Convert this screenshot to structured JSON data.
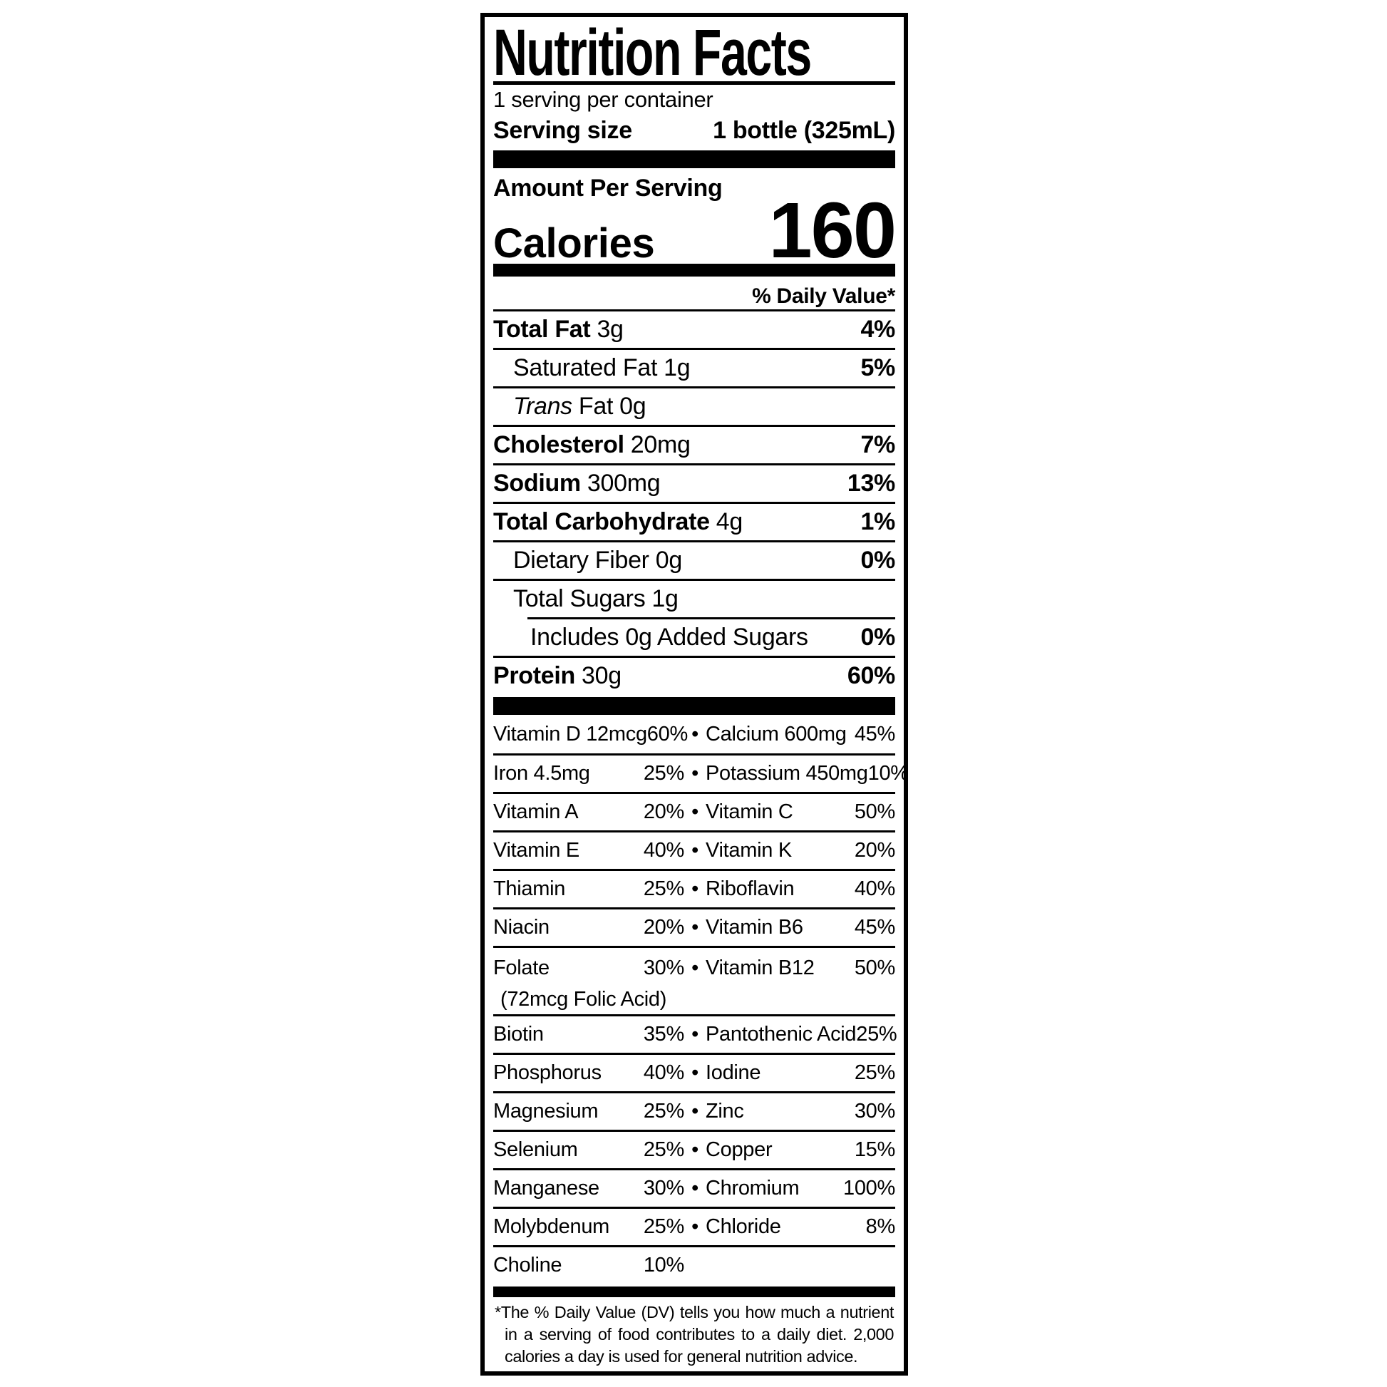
{
  "label": {
    "title": "Nutrition Facts",
    "servings_per_container": "1 serving per container",
    "serving_size_label": "Serving size",
    "serving_size_value": "1 bottle (325mL)",
    "amount_per_serving": "Amount Per Serving",
    "calories_label": "Calories",
    "calories_value": "160",
    "daily_value_header": "% Daily Value*",
    "bullet": "•",
    "nutrients": [
      {
        "name": "Total Fat",
        "amount": "3g",
        "dv": "4%"
      },
      {
        "name": "Saturated Fat",
        "amount": "1g",
        "dv": "5%"
      },
      {
        "name_italic": "Trans",
        "name": "Fat",
        "amount": "0g",
        "dv": ""
      },
      {
        "name": "Cholesterol",
        "amount": "20mg",
        "dv": "7%"
      },
      {
        "name": "Sodium",
        "amount": "300mg",
        "dv": "13%"
      },
      {
        "name": "Total Carbohydrate",
        "amount": "4g",
        "dv": "1%"
      },
      {
        "name": "Dietary Fiber",
        "amount": "0g",
        "dv": "0%"
      },
      {
        "name": "Total Sugars",
        "amount": "1g",
        "dv": ""
      },
      {
        "name": "Includes 0g Added Sugars",
        "amount": "",
        "dv": "0%"
      },
      {
        "name": "Protein",
        "amount": "30g",
        "dv": "60%"
      }
    ],
    "micronutrients": [
      {
        "left_name": "Vitamin D 12mcg",
        "left_dv": "60%",
        "right_name": "Calcium 600mg",
        "right_dv": "45%"
      },
      {
        "left_name": "Iron 4.5mg",
        "left_dv": "25%",
        "right_name": "Potassium 450mg",
        "right_dv": "10%"
      },
      {
        "left_name": "Vitamin A",
        "left_dv": "20%",
        "right_name": "Vitamin C",
        "right_dv": "50%"
      },
      {
        "left_name": "Vitamin E",
        "left_dv": "40%",
        "right_name": "Vitamin K",
        "right_dv": "20%"
      },
      {
        "left_name": "Thiamin",
        "left_dv": "25%",
        "right_name": "Riboflavin",
        "right_dv": "40%"
      },
      {
        "left_name": "Niacin",
        "left_dv": "20%",
        "right_name": "Vitamin B6",
        "right_dv": "45%"
      },
      {
        "left_name": "Folate",
        "left_dv": "30%",
        "right_name": "Vitamin B12",
        "right_dv": "50%",
        "note": "(72mcg Folic Acid)"
      },
      {
        "left_name": "Biotin",
        "left_dv": "35%",
        "right_name": "Pantothenic Acid",
        "right_dv": "25%"
      },
      {
        "left_name": "Phosphorus",
        "left_dv": "40%",
        "right_name": "Iodine",
        "right_dv": "25%"
      },
      {
        "left_name": "Magnesium",
        "left_dv": "25%",
        "right_name": "Zinc",
        "right_dv": "30%"
      },
      {
        "left_name": "Selenium",
        "left_dv": "25%",
        "right_name": "Copper",
        "right_dv": "15%"
      },
      {
        "left_name": "Manganese",
        "left_dv": "30%",
        "right_name": "Chromium",
        "right_dv": "100%"
      },
      {
        "left_name": "Molybdenum",
        "left_dv": "25%",
        "right_name": "Chloride",
        "right_dv": "8%"
      },
      {
        "left_name": "Choline",
        "left_dv": "10%",
        "right_name": "",
        "right_dv": ""
      }
    ],
    "footnote_lines": [
      "*The % Daily Value (DV) tells you how much a nutrient",
      "in a serving of food contributes to a daily diet. 2,000",
      "calories a day is used for general nutrition advice."
    ]
  }
}
